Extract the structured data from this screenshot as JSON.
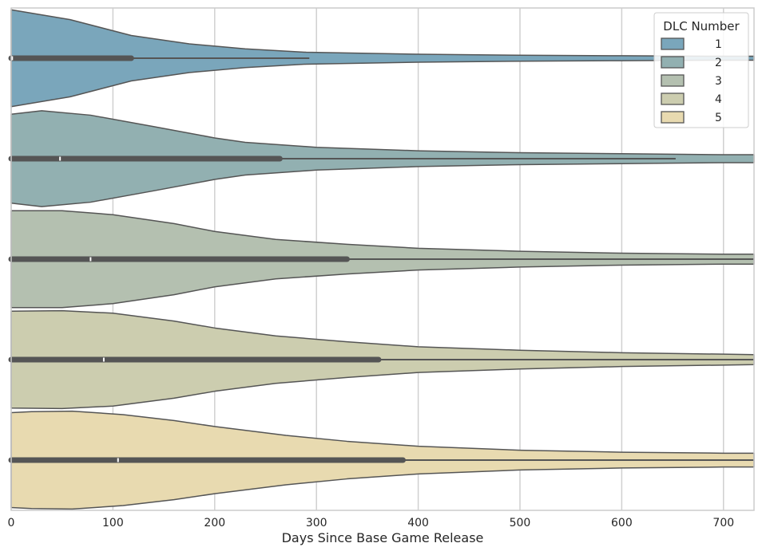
{
  "chart_data": {
    "type": "violin",
    "orientation": "horizontal",
    "title": "",
    "xlabel": "Days Since Base Game Release",
    "ylabel": "",
    "xlim": [
      0,
      730
    ],
    "xticks": [
      0,
      100,
      200,
      300,
      400,
      500,
      600,
      700
    ],
    "grid": "vertical",
    "legend": {
      "title": "DLC Number",
      "placement": "top-right",
      "entries": [
        {
          "label": "1",
          "color": "#7aa6bb"
        },
        {
          "label": "2",
          "color": "#92b0b1"
        },
        {
          "label": "3",
          "color": "#b4c0b0"
        },
        {
          "label": "4",
          "color": "#cccdaf"
        },
        {
          "label": "5",
          "color": "#e8dab0"
        }
      ]
    },
    "series": [
      {
        "name": "1",
        "color": "#7aa6bb",
        "median": 1,
        "q1": 0,
        "q3": 118,
        "whisker_low": 0,
        "whisker_high": 293,
        "density": [
          [
            0,
            0.98
          ],
          [
            58,
            0.78
          ],
          [
            118,
            0.46
          ],
          [
            175,
            0.29
          ],
          [
            230,
            0.19
          ],
          [
            290,
            0.12
          ],
          [
            400,
            0.08
          ],
          [
            500,
            0.06
          ],
          [
            600,
            0.05
          ],
          [
            700,
            0.04
          ],
          [
            730,
            0.04
          ]
        ]
      },
      {
        "name": "2",
        "color": "#92b0b1",
        "median": 48,
        "q1": 0,
        "q3": 264,
        "whisker_low": 0,
        "whisker_high": 653,
        "density": [
          [
            0,
            0.9
          ],
          [
            30,
            0.97
          ],
          [
            78,
            0.88
          ],
          [
            140,
            0.65
          ],
          [
            200,
            0.42
          ],
          [
            230,
            0.33
          ],
          [
            300,
            0.23
          ],
          [
            400,
            0.16
          ],
          [
            500,
            0.12
          ],
          [
            600,
            0.1
          ],
          [
            700,
            0.08
          ],
          [
            730,
            0.08
          ]
        ]
      },
      {
        "name": "3",
        "color": "#b4c0b0",
        "median": 78,
        "q1": 0,
        "q3": 330,
        "whisker_low": 0,
        "whisker_high": 730,
        "density": [
          [
            0,
            0.98
          ],
          [
            50,
            0.98
          ],
          [
            100,
            0.9
          ],
          [
            160,
            0.72
          ],
          [
            200,
            0.56
          ],
          [
            260,
            0.4
          ],
          [
            330,
            0.3
          ],
          [
            400,
            0.22
          ],
          [
            500,
            0.16
          ],
          [
            600,
            0.12
          ],
          [
            700,
            0.1
          ],
          [
            730,
            0.1
          ]
        ]
      },
      {
        "name": "4",
        "color": "#cccdaf",
        "median": 91,
        "q1": 0,
        "q3": 361,
        "whisker_low": 0,
        "whisker_high": 730,
        "density": [
          [
            0,
            0.98
          ],
          [
            50,
            0.99
          ],
          [
            100,
            0.94
          ],
          [
            160,
            0.78
          ],
          [
            200,
            0.64
          ],
          [
            260,
            0.48
          ],
          [
            330,
            0.36
          ],
          [
            400,
            0.26
          ],
          [
            500,
            0.19
          ],
          [
            600,
            0.14
          ],
          [
            700,
            0.11
          ],
          [
            730,
            0.1
          ]
        ]
      },
      {
        "name": "5",
        "color": "#e8dab0",
        "median": 105,
        "q1": 0,
        "q3": 385,
        "whisker_low": 0,
        "whisker_high": 730,
        "density": [
          [
            0,
            0.96
          ],
          [
            20,
            0.98
          ],
          [
            60,
            0.99
          ],
          [
            110,
            0.92
          ],
          [
            160,
            0.8
          ],
          [
            200,
            0.68
          ],
          [
            270,
            0.5
          ],
          [
            330,
            0.38
          ],
          [
            400,
            0.28
          ],
          [
            500,
            0.2
          ],
          [
            600,
            0.16
          ],
          [
            700,
            0.14
          ],
          [
            730,
            0.14
          ]
        ]
      }
    ]
  }
}
